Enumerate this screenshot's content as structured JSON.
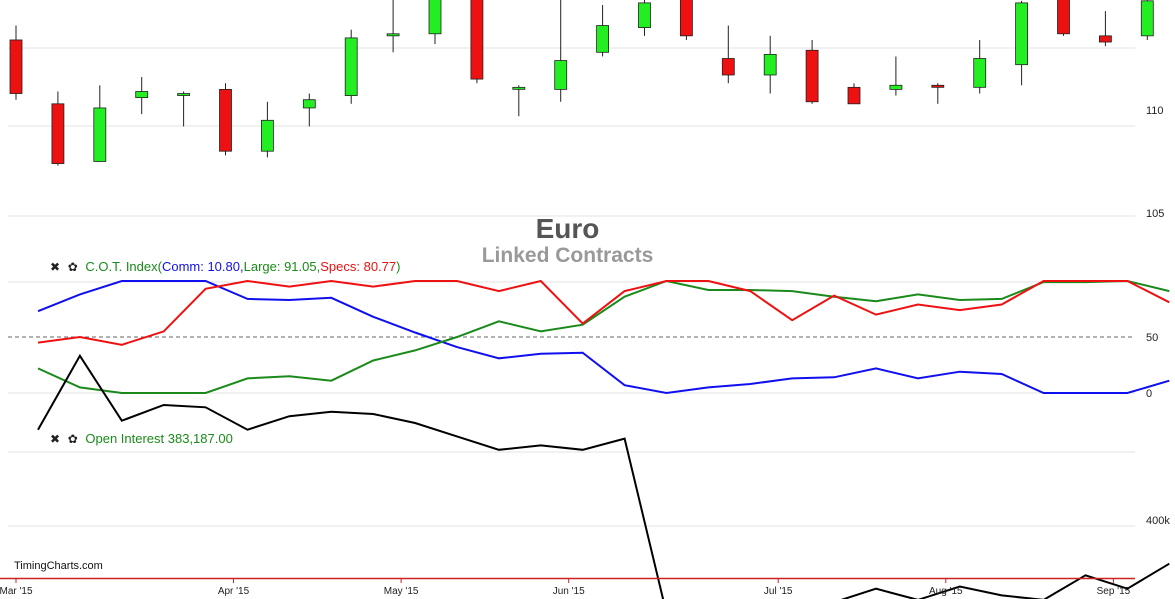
{
  "title": "Euro",
  "subtitle": "Linked Contracts",
  "watermark": "TimingCharts.com",
  "colors": {
    "up": "#22ee22",
    "down": "#ee1111",
    "comm": "#1010ee",
    "large": "#1a8a1a",
    "specs": "#ee1111",
    "oi": "#000000",
    "axis": "#cc2222",
    "grid": "#e3e3e3"
  },
  "controls": {
    "close_icon": "✖",
    "settings_icon": "✿"
  },
  "cot_legend": {
    "name": "C.O.T. Index(",
    "comm": "Comm: 10.80,",
    "large": "Large: 91.05,",
    "specs": "Specs: 80.77",
    "close": ")"
  },
  "oi_legend": {
    "text": "Open Interest 383,187.00"
  },
  "x_axis_labels": [
    "Mar '15",
    "Apr '15",
    "May '15",
    "Jun '15",
    "Jul '15",
    "Aug '15",
    "Sep '15"
  ],
  "chart_data": [
    {
      "type": "candlestick",
      "name": "Euro",
      "y_ticks": [
        105,
        110
      ],
      "ylim": [
        102.6,
        119.5
      ],
      "candles": [
        {
          "o": 113.4,
          "h": 114.1,
          "l": 110.5,
          "c": 110.8
        },
        {
          "o": 110.3,
          "h": 110.9,
          "l": 107.3,
          "c": 107.4
        },
        {
          "o": 107.5,
          "h": 111.2,
          "l": 107.5,
          "c": 110.1
        },
        {
          "o": 110.6,
          "h": 111.6,
          "l": 109.8,
          "c": 110.9
        },
        {
          "o": 110.8,
          "h": 110.9,
          "l": 109.2,
          "c": 110.8
        },
        {
          "o": 111.0,
          "h": 111.3,
          "l": 107.8,
          "c": 108.0
        },
        {
          "o": 108.0,
          "h": 110.4,
          "l": 107.7,
          "c": 109.5
        },
        {
          "o": 110.1,
          "h": 110.8,
          "l": 109.2,
          "c": 110.5
        },
        {
          "o": 110.7,
          "h": 113.9,
          "l": 110.3,
          "c": 113.5
        },
        {
          "o": 113.6,
          "h": 115.8,
          "l": 112.8,
          "c": 113.7
        },
        {
          "o": 113.7,
          "h": 116.7,
          "l": 113.2,
          "c": 116.3
        },
        {
          "o": 116.3,
          "h": 116.3,
          "l": 111.3,
          "c": 111.5
        },
        {
          "o": 111.1,
          "h": 111.2,
          "l": 109.7,
          "c": 111.1
        },
        {
          "o": 111.0,
          "h": 115.6,
          "l": 110.4,
          "c": 112.4
        },
        {
          "o": 112.8,
          "h": 115.1,
          "l": 112.6,
          "c": 114.1
        },
        {
          "o": 114.0,
          "h": 116.1,
          "l": 113.6,
          "c": 115.2
        },
        {
          "o": 115.5,
          "h": 115.6,
          "l": 113.4,
          "c": 113.6
        },
        {
          "o": 112.5,
          "h": 114.1,
          "l": 111.3,
          "c": 111.7
        },
        {
          "o": 111.7,
          "h": 113.6,
          "l": 110.8,
          "c": 112.7
        },
        {
          "o": 112.9,
          "h": 113.4,
          "l": 110.3,
          "c": 110.4
        },
        {
          "o": 111.1,
          "h": 111.3,
          "l": 110.3,
          "c": 110.3
        },
        {
          "o": 111.0,
          "h": 112.6,
          "l": 110.7,
          "c": 111.2
        },
        {
          "o": 111.2,
          "h": 111.3,
          "l": 110.3,
          "c": 111.1
        },
        {
          "o": 111.1,
          "h": 113.4,
          "l": 110.8,
          "c": 112.5
        },
        {
          "o": 112.2,
          "h": 115.3,
          "l": 111.2,
          "c": 115.2
        },
        {
          "o": 115.4,
          "h": 119.0,
          "l": 113.6,
          "c": 113.7
        },
        {
          "o": 113.6,
          "h": 114.8,
          "l": 113.1,
          "c": 113.3
        },
        {
          "o": 113.6,
          "h": 115.4,
          "l": 113.4,
          "c": 115.3
        }
      ]
    },
    {
      "type": "line",
      "name": "C.O.T. Index",
      "ylim": [
        0,
        100
      ],
      "y_ticks": [
        0,
        50
      ],
      "reference_line": 50,
      "series": [
        {
          "name": "Comm",
          "values": [
            73,
            88,
            100,
            100,
            100,
            84,
            83,
            85,
            68,
            54,
            41,
            31,
            35,
            36,
            7,
            0,
            5,
            8,
            13,
            14,
            22,
            13,
            19,
            17,
            0,
            0,
            0,
            11
          ]
        },
        {
          "name": "Large",
          "values": [
            22,
            5,
            0,
            0,
            0,
            13,
            15,
            11,
            29,
            38,
            50,
            64,
            55,
            61,
            86,
            100,
            92,
            92,
            91,
            86,
            82,
            88,
            83,
            84,
            99,
            99,
            100,
            91
          ]
        },
        {
          "name": "Specs",
          "values": [
            45,
            50,
            43,
            55,
            93,
            100,
            95,
            100,
            95,
            100,
            100,
            91,
            100,
            62,
            91,
            100,
            100,
            91,
            65,
            87,
            70,
            79,
            74,
            79,
            100,
            100,
            100,
            81
          ]
        }
      ]
    },
    {
      "type": "line",
      "name": "Open Interest",
      "y_ticks_labels": [
        "400k"
      ],
      "y_tick_values": [
        400000
      ],
      "ylim": [
        350000,
        500000
      ],
      "series": [
        {
          "name": "Open Interest",
          "values": [
            443000,
            476000,
            447000,
            454000,
            453000,
            443000,
            449000,
            451000,
            450000,
            446000,
            440000,
            434000,
            436000,
            434000,
            439000,
            361000,
            358000,
            358000,
            364000,
            366000,
            372000,
            367000,
            373000,
            369000,
            367000,
            378000,
            372000,
            383187
          ]
        }
      ]
    }
  ]
}
